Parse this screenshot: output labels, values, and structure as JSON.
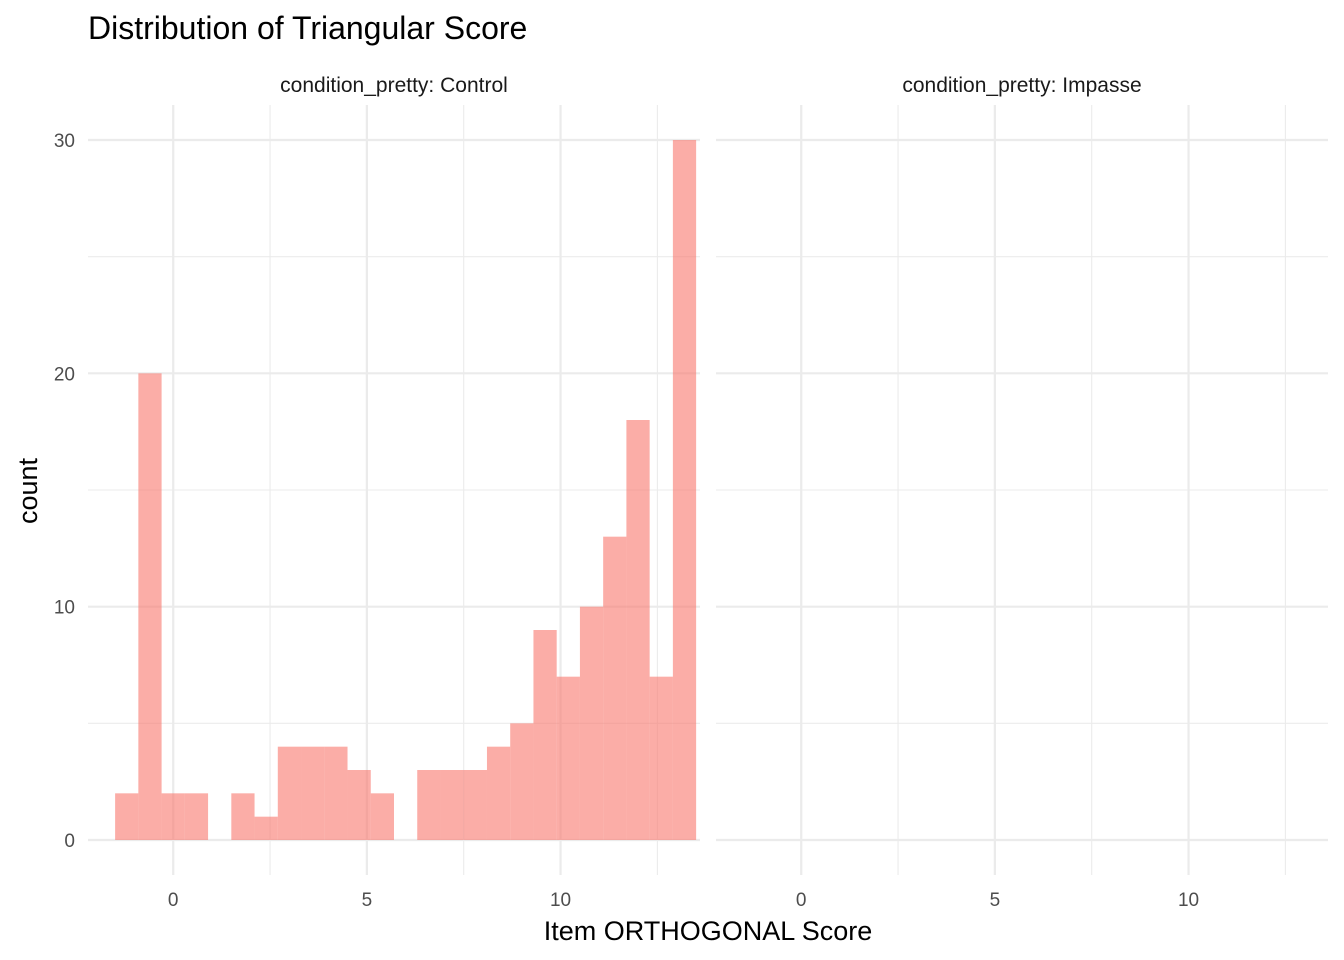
{
  "chart_data": {
    "type": "bar",
    "title": "Distribution of Triangular Score",
    "xlabel": "Item ORTHOGONAL Score",
    "ylabel": "count",
    "bar_color": "#F8766D",
    "bar_opacity": 0.6,
    "grid": true,
    "legend": "none",
    "xlim": [
      -2.2,
      13.6
    ],
    "ylim": [
      -1.5,
      31.5
    ],
    "x_ticks": [
      0,
      5,
      10
    ],
    "x_minor_ticks": [
      -2.5,
      2.5,
      7.5,
      12.5
    ],
    "y_ticks": [
      0,
      10,
      20,
      30
    ],
    "y_minor_ticks": [
      5,
      15,
      25
    ],
    "bin_width": 0.6,
    "panels": [
      {
        "label": "condition_pretty: Control",
        "bins": [
          {
            "x": -1.2,
            "count": 2
          },
          {
            "x": -0.6,
            "count": 20
          },
          {
            "x": 0.0,
            "count": 2
          },
          {
            "x": 0.6,
            "count": 2
          },
          {
            "x": 1.8,
            "count": 2
          },
          {
            "x": 2.4,
            "count": 1
          },
          {
            "x": 3.0,
            "count": 4
          },
          {
            "x": 3.6,
            "count": 4
          },
          {
            "x": 4.2,
            "count": 4
          },
          {
            "x": 4.8,
            "count": 3
          },
          {
            "x": 5.4,
            "count": 2
          },
          {
            "x": 6.6,
            "count": 3
          },
          {
            "x": 7.2,
            "count": 3
          },
          {
            "x": 7.8,
            "count": 3
          },
          {
            "x": 8.4,
            "count": 4
          },
          {
            "x": 9.0,
            "count": 5
          },
          {
            "x": 9.6,
            "count": 9
          },
          {
            "x": 10.2,
            "count": 7
          },
          {
            "x": 10.8,
            "count": 10
          },
          {
            "x": 11.4,
            "count": 13
          },
          {
            "x": 12.0,
            "count": 18
          },
          {
            "x": 12.6,
            "count": 7
          },
          {
            "x": 13.2,
            "count": 30
          }
        ]
      },
      {
        "label": "condition_pretty: Impasse",
        "bins": []
      }
    ]
  }
}
